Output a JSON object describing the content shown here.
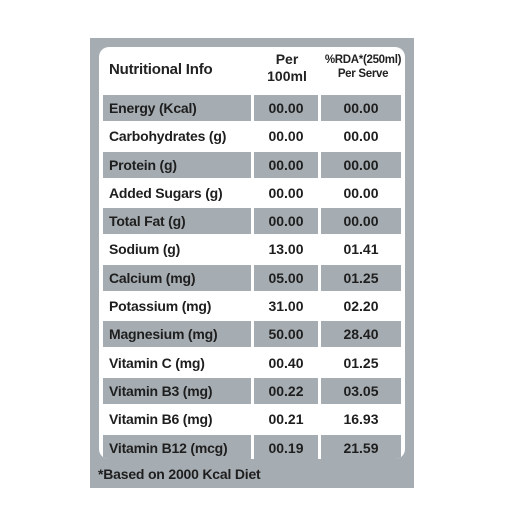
{
  "header": {
    "label": "Nutritional Info",
    "per_100ml_line1": "Per",
    "per_100ml_line2": "100ml",
    "rda_line1": "%RDA*(250ml)",
    "rda_line2": "Per Serve"
  },
  "rows": [
    {
      "name": "Energy (Kcal)",
      "per100": "00.00",
      "rda": "00.00"
    },
    {
      "name": "Carbohydrates (g)",
      "per100": "00.00",
      "rda": "00.00"
    },
    {
      "name": "Protein (g)",
      "per100": "00.00",
      "rda": "00.00"
    },
    {
      "name": "Added Sugars (g)",
      "per100": "00.00",
      "rda": "00.00"
    },
    {
      "name": "Total Fat (g)",
      "per100": "00.00",
      "rda": "00.00"
    },
    {
      "name": "Sodium (g)",
      "per100": "13.00",
      "rda": "01.41"
    },
    {
      "name": "Calcium (mg)",
      "per100": "05.00",
      "rda": "01.25"
    },
    {
      "name": "Potassium (mg)",
      "per100": "31.00",
      "rda": "02.20"
    },
    {
      "name": "Magnesium (mg)",
      "per100": "50.00",
      "rda": "28.40"
    },
    {
      "name": "Vitamin C (mg)",
      "per100": "00.40",
      "rda": "01.25"
    },
    {
      "name": "Vitamin B3 (mg)",
      "per100": "00.22",
      "rda": "03.05"
    },
    {
      "name": "Vitamin B6 (mg)",
      "per100": "00.21",
      "rda": "16.93"
    },
    {
      "name": "Vitamin B12 (mcg)",
      "per100": "00.19",
      "rda": "21.59"
    }
  ],
  "footnote": "*Based on 2000 Kcal Diet",
  "colors": {
    "shade": "#a6adb2",
    "background": "#ffffff",
    "text": "#1e1e1e"
  }
}
